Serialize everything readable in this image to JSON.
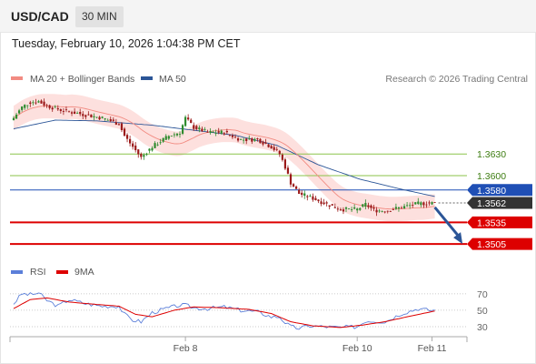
{
  "header": {
    "symbol": "USD/CAD",
    "timeframe": "30 MIN"
  },
  "datetime": "Tuesday, February 10, 2026 1:04:38 PM CET",
  "legend": {
    "main": [
      {
        "label": "MA 20 + Bollinger Bands",
        "color": "#f28b82"
      },
      {
        "label": "MA 50",
        "color": "#2b5597"
      }
    ],
    "rsi": [
      {
        "label": "RSI",
        "color": "#5b7fd9"
      },
      {
        "label": "9MA",
        "color": "#dd0000"
      }
    ]
  },
  "credit": "Research © 2026 Trading Central",
  "colors": {
    "up_candle": "#2e8b2e",
    "down_candle": "#9b1a1a",
    "bollinger_fill": "#fde0de",
    "ma20": "#f28b82",
    "ma50": "#2b5597",
    "resistance": "#8bc34a",
    "pivot": "#1f4fb5",
    "support": "#dd0000",
    "current": "#333333",
    "arrow": "#2b5597"
  },
  "chart_data": [
    {
      "type": "candlestick",
      "title": "",
      "ylim": [
        1.349,
        1.372
      ],
      "x_ticks": [
        {
          "index": 62,
          "label": "Feb 8"
        },
        {
          "index": 124,
          "label": "Feb 10"
        },
        {
          "index": 151,
          "label": "Feb 11"
        }
      ],
      "levels": [
        {
          "value": 1.363,
          "label": "1.3630",
          "kind": "resistance"
        },
        {
          "value": 1.36,
          "label": "1.3600",
          "kind": "resistance"
        },
        {
          "value": 1.358,
          "label": "1.3580",
          "kind": "pivot"
        },
        {
          "value": 1.3562,
          "label": "1.3562",
          "kind": "current"
        },
        {
          "value": 1.3535,
          "label": "1.3535",
          "kind": "support"
        },
        {
          "value": 1.3505,
          "label": "1.3505",
          "kind": "support"
        }
      ],
      "anchors": [
        [
          0,
          1.368
        ],
        [
          3,
          1.3695
        ],
        [
          6,
          1.3702
        ],
        [
          9,
          1.3703
        ],
        [
          12,
          1.3697
        ],
        [
          18,
          1.369
        ],
        [
          25,
          1.3685
        ],
        [
          32,
          1.368
        ],
        [
          38,
          1.3672
        ],
        [
          40,
          1.3655
        ],
        [
          43,
          1.364
        ],
        [
          46,
          1.3625
        ],
        [
          50,
          1.364
        ],
        [
          56,
          1.3655
        ],
        [
          60,
          1.366
        ],
        [
          62,
          1.368
        ],
        [
          65,
          1.3667
        ],
        [
          70,
          1.366
        ],
        [
          76,
          1.366
        ],
        [
          82,
          1.365
        ],
        [
          88,
          1.365
        ],
        [
          93,
          1.364
        ],
        [
          96,
          1.363
        ],
        [
          98,
          1.3612
        ],
        [
          100,
          1.359
        ],
        [
          103,
          1.3575
        ],
        [
          107,
          1.357
        ],
        [
          112,
          1.3562
        ],
        [
          118,
          1.3553
        ],
        [
          124,
          1.3553
        ],
        [
          127,
          1.356
        ],
        [
          130,
          1.3552
        ],
        [
          134,
          1.3551
        ],
        [
          140,
          1.3556
        ],
        [
          146,
          1.3561
        ],
        [
          152,
          1.3562
        ]
      ],
      "bollinger_width": 0.0017,
      "ma50_anchors": [
        [
          0,
          1.3665
        ],
        [
          15,
          1.3677
        ],
        [
          30,
          1.3676
        ],
        [
          50,
          1.367
        ],
        [
          65,
          1.3663
        ],
        [
          80,
          1.3656
        ],
        [
          95,
          1.3642
        ],
        [
          110,
          1.3615
        ],
        [
          125,
          1.3595
        ],
        [
          140,
          1.3581
        ],
        [
          152,
          1.3571
        ]
      ],
      "forecast_arrow": {
        "from": [
          152,
          1.3556
        ],
        "to": [
          162,
          1.3505
        ]
      }
    },
    {
      "type": "line",
      "title": "RSI",
      "ylim": [
        20,
        82
      ],
      "y_ticks": [
        70,
        50,
        30
      ],
      "rsi_anchors": [
        [
          0,
          58
        ],
        [
          3,
          70
        ],
        [
          6,
          69
        ],
        [
          9,
          71
        ],
        [
          12,
          62
        ],
        [
          16,
          55
        ],
        [
          20,
          63
        ],
        [
          26,
          58
        ],
        [
          32,
          55
        ],
        [
          38,
          55
        ],
        [
          40,
          45
        ],
        [
          43,
          38
        ],
        [
          46,
          36
        ],
        [
          50,
          47
        ],
        [
          55,
          52
        ],
        [
          60,
          56
        ],
        [
          62,
          56
        ],
        [
          65,
          53
        ],
        [
          70,
          52
        ],
        [
          76,
          54
        ],
        [
          82,
          50
        ],
        [
          88,
          48
        ],
        [
          93,
          42
        ],
        [
          96,
          42
        ],
        [
          98,
          35
        ],
        [
          100,
          30
        ],
        [
          103,
          28
        ],
        [
          107,
          31
        ],
        [
          112,
          30
        ],
        [
          118,
          29
        ],
        [
          124,
          30
        ],
        [
          127,
          37
        ],
        [
          130,
          37
        ],
        [
          134,
          36
        ],
        [
          140,
          46
        ],
        [
          146,
          52
        ],
        [
          150,
          50
        ],
        [
          152,
          50
        ]
      ],
      "ma9_anchors": [
        [
          0,
          52
        ],
        [
          6,
          63
        ],
        [
          12,
          65
        ],
        [
          20,
          60
        ],
        [
          30,
          57
        ],
        [
          38,
          55
        ],
        [
          44,
          45
        ],
        [
          50,
          42
        ],
        [
          58,
          50
        ],
        [
          65,
          54
        ],
        [
          75,
          53
        ],
        [
          85,
          51
        ],
        [
          93,
          46
        ],
        [
          100,
          36
        ],
        [
          108,
          31
        ],
        [
          118,
          29
        ],
        [
          126,
          32
        ],
        [
          134,
          36
        ],
        [
          142,
          42
        ],
        [
          152,
          49
        ]
      ]
    }
  ]
}
